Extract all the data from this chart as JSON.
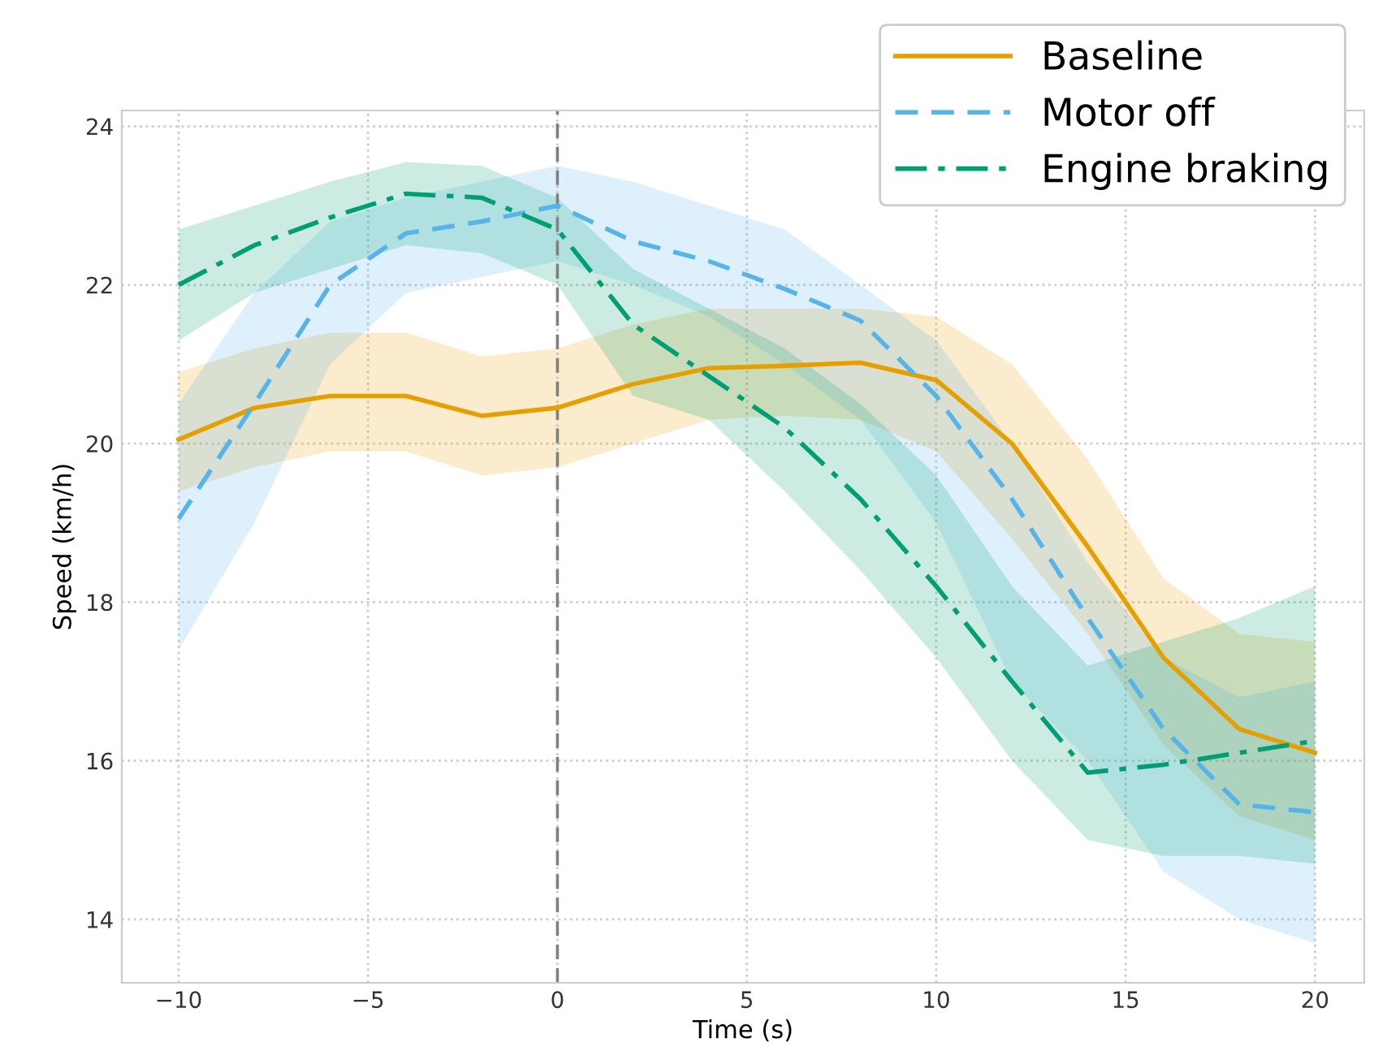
{
  "chart_data": {
    "type": "line",
    "xlabel": "Time (s)",
    "ylabel": "Speed (km/h)",
    "x": [
      -10,
      -8,
      -6,
      -4,
      -2,
      0,
      2,
      4,
      6,
      8,
      10,
      12,
      14,
      16,
      18,
      20
    ],
    "series": [
      {
        "name": "Baseline",
        "color": "#e69f00",
        "line_style": "solid",
        "values": [
          20.05,
          20.45,
          20.6,
          20.6,
          20.35,
          20.45,
          20.75,
          20.95,
          20.98,
          21.02,
          20.8,
          20.0,
          18.7,
          17.3,
          16.4,
          16.1
        ],
        "lower": [
          19.4,
          19.7,
          19.9,
          19.9,
          19.6,
          19.7,
          20.0,
          20.3,
          20.35,
          20.3,
          19.9,
          18.8,
          17.6,
          16.2,
          15.3,
          15.0
        ],
        "upper": [
          20.9,
          21.2,
          21.4,
          21.4,
          21.1,
          21.2,
          21.5,
          21.7,
          21.7,
          21.7,
          21.6,
          21.0,
          19.8,
          18.3,
          17.6,
          17.5
        ]
      },
      {
        "name": "Motor off",
        "color": "#56b4e9",
        "line_style": "dashed",
        "values": [
          19.05,
          20.5,
          22.0,
          22.65,
          22.8,
          23.0,
          22.55,
          22.3,
          21.95,
          21.55,
          20.6,
          19.3,
          17.8,
          16.4,
          15.45,
          15.35
        ],
        "lower": [
          17.4,
          19.0,
          21.0,
          21.9,
          22.1,
          22.3,
          22.0,
          21.6,
          21.0,
          20.3,
          19.0,
          17.0,
          16.0,
          14.6,
          14.0,
          13.7
        ],
        "upper": [
          20.5,
          21.9,
          22.8,
          23.1,
          23.3,
          23.5,
          23.3,
          23.0,
          22.7,
          22.0,
          21.3,
          20.0,
          18.5,
          17.3,
          16.8,
          17.0
        ]
      },
      {
        "name": "Engine braking",
        "color": "#009e73",
        "line_style": "dashdot",
        "values": [
          22.0,
          22.5,
          22.85,
          23.15,
          23.1,
          22.7,
          21.5,
          20.85,
          20.2,
          19.3,
          18.2,
          17.0,
          15.85,
          15.95,
          16.1,
          16.25
        ],
        "lower": [
          21.3,
          21.9,
          22.2,
          22.5,
          22.4,
          22.0,
          20.6,
          20.3,
          19.4,
          18.4,
          17.3,
          16.0,
          15.0,
          14.8,
          14.8,
          14.7
        ],
        "upper": [
          22.7,
          23.0,
          23.3,
          23.55,
          23.5,
          23.1,
          22.2,
          21.7,
          21.2,
          20.5,
          19.6,
          18.2,
          17.2,
          17.5,
          17.8,
          18.2
        ]
      }
    ],
    "xlim": [
      -11.5,
      21.3
    ],
    "ylim": [
      13.2,
      24.2
    ],
    "xticks": [
      {
        "value": -10,
        "label": "−10"
      },
      {
        "value": -5,
        "label": "−5"
      },
      0,
      5,
      10,
      15,
      20
    ],
    "yticks": [
      14,
      16,
      18,
      20,
      22,
      24
    ],
    "ref_lines": [
      {
        "axis": "x",
        "value": 0,
        "color": "#808080",
        "line_style": "dashed"
      }
    ],
    "grid": true,
    "legend": "top right"
  }
}
